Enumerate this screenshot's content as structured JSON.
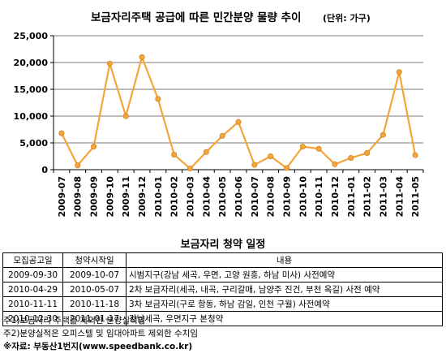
{
  "chart_data": {
    "type": "line",
    "title": "보금자리주택 공급에 따른 민간분양 물량 추이",
    "unit_note": "(단위: 가구)",
    "categories": [
      "2009-07",
      "2009-08",
      "2009-09",
      "2009-10",
      "2009-11",
      "2009-12",
      "2010-01",
      "2010-02",
      "2010-03",
      "2010-04",
      "2010-05",
      "2010-06",
      "2010-07",
      "2010-08",
      "2010-09",
      "2010-10",
      "2010-11",
      "2010-12",
      "2011-01",
      "2011-02",
      "2011-03",
      "2011-04",
      "2011-05"
    ],
    "series": [
      {
        "values": [
          6800,
          800,
          4300,
          19800,
          10000,
          21000,
          13200,
          2800,
          200,
          3300,
          6300,
          8900,
          900,
          2500,
          300,
          4300,
          3900,
          1000,
          2200,
          3100,
          6500,
          18200,
          2700
        ],
        "color": "#f4a53a"
      }
    ],
    "ylim": [
      0,
      25000
    ],
    "yticks": [
      0,
      5000,
      10000,
      15000,
      20000,
      25000
    ],
    "ytick_labels": [
      "0",
      "5,000",
      "10,000",
      "15,000",
      "20,000",
      "25,000"
    ],
    "grid": true
  },
  "schedule": {
    "title": "보금자리 청약 일정",
    "headers": [
      "모집공고일",
      "청약시작일",
      "내용"
    ],
    "rows": [
      [
        "2009-09-30",
        "2009-10-07",
        "시범지구(강남 세곡, 우면, 고양 원흥, 하남 미사) 사전예약"
      ],
      [
        "2010-04-29",
        "2010-05-07",
        "2차 보금자리(세곡, 내곡, 구리갈매, 남양주 진건, 부천 옥길) 사전 예약"
      ],
      [
        "2010-11-11",
        "2010-11-18",
        "3차 보금자리(구로 항동, 하남 감일, 인천 구월) 사전예약"
      ],
      [
        "2010-12-30",
        "2011-01-17",
        "강남세곡, 우면지구 본청약"
      ]
    ]
  },
  "notes": [
    "주1)보금자리 주택을 제외한 분양실적임",
    "주2)분양실적은 오피스텔 및 임대아파트 제외한 수치임",
    "※자료: 부동산1번지(www.speedbank.co.kr)"
  ]
}
